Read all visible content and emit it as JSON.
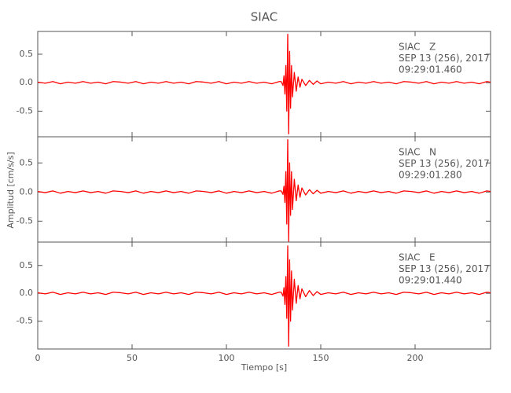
{
  "chart_data": [
    {
      "type": "line",
      "title": "SIAC",
      "color": "#ff0000",
      "annotations": [
        "SIAC   Z",
        "SEP 13 (256), 2017",
        "09:29:01.460"
      ],
      "ylim": [
        -0.95,
        0.9
      ],
      "yticks": [
        -0.5,
        {
          "value": 0,
          "label": "0.0"
        },
        0.5
      ],
      "x": [
        0,
        4,
        8,
        12,
        16,
        20,
        24,
        28,
        32,
        36,
        40,
        44,
        48,
        52,
        56,
        60,
        64,
        68,
        72,
        76,
        80,
        84,
        88,
        92,
        96,
        100,
        104,
        108,
        112,
        116,
        120,
        124,
        128,
        129,
        130,
        130.5,
        131,
        131.5,
        132,
        132.5,
        133,
        133.5,
        134,
        134.5,
        135,
        136,
        137,
        138,
        139,
        140,
        142,
        144,
        146,
        148,
        150,
        154,
        158,
        162,
        166,
        170,
        174,
        178,
        182,
        186,
        190,
        194,
        198,
        202,
        206,
        210,
        214,
        218,
        222,
        226,
        230,
        234,
        238,
        240
      ],
      "values": [
        0.01,
        -0.01,
        0.02,
        -0.02,
        0.01,
        -0.01,
        0.02,
        -0.01,
        0.01,
        -0.02,
        0.02,
        0.01,
        -0.01,
        0.02,
        -0.02,
        0.01,
        -0.01,
        0.02,
        -0.01,
        0.01,
        -0.02,
        0.02,
        0.01,
        -0.01,
        0.02,
        -0.02,
        0.01,
        -0.01,
        0.02,
        -0.01,
        0.01,
        -0.02,
        0.02,
        0.02,
        -0.05,
        0.12,
        -0.2,
        0.3,
        -0.5,
        0.85,
        -0.9,
        0.55,
        -0.45,
        0.3,
        -0.25,
        0.18,
        -0.15,
        0.1,
        -0.08,
        0.06,
        -0.05,
        0.04,
        -0.03,
        0.03,
        -0.02,
        0.01,
        -0.01,
        0.02,
        -0.02,
        0.01,
        -0.01,
        0.02,
        -0.01,
        0.01,
        -0.02,
        0.02,
        0.01,
        -0.01,
        0.02,
        -0.02,
        0.01,
        -0.01,
        0.02,
        -0.01,
        0.01,
        -0.02,
        0.02,
        0.01
      ]
    },
    {
      "type": "line",
      "ylabel": "Amplitud [cm/s/s]",
      "color": "#ff0000",
      "annotations": [
        "SIAC   N",
        "SEP 13 (256), 2017",
        "09:29:01.280"
      ],
      "ylim": [
        -0.86,
        0.95
      ],
      "yticks": [
        -0.5,
        {
          "value": 0,
          "label": "0.0"
        },
        0.5
      ],
      "x": [
        0,
        4,
        8,
        12,
        16,
        20,
        24,
        28,
        32,
        36,
        40,
        44,
        48,
        52,
        56,
        60,
        64,
        68,
        72,
        76,
        80,
        84,
        88,
        92,
        96,
        100,
        104,
        108,
        112,
        116,
        120,
        124,
        128,
        129,
        130,
        130.5,
        131,
        131.5,
        132,
        132.5,
        133,
        133.5,
        134,
        134.5,
        135,
        136,
        137,
        138,
        139,
        140,
        142,
        144,
        146,
        148,
        150,
        154,
        158,
        162,
        166,
        170,
        174,
        178,
        182,
        186,
        190,
        194,
        198,
        202,
        206,
        210,
        214,
        218,
        222,
        226,
        230,
        234,
        238,
        240
      ],
      "values": [
        0.01,
        -0.01,
        0.02,
        -0.02,
        0.01,
        -0.01,
        0.02,
        -0.01,
        0.01,
        -0.02,
        0.02,
        0.01,
        -0.01,
        0.02,
        -0.02,
        0.01,
        -0.01,
        0.02,
        -0.01,
        0.01,
        -0.02,
        0.02,
        0.01,
        -0.01,
        0.02,
        -0.02,
        0.01,
        -0.01,
        0.02,
        -0.01,
        0.01,
        -0.02,
        0.02,
        0.02,
        -0.04,
        0.1,
        -0.18,
        0.35,
        -0.55,
        0.9,
        -0.85,
        0.5,
        -0.4,
        0.35,
        -0.3,
        0.22,
        -0.15,
        0.12,
        -0.09,
        0.07,
        -0.05,
        0.04,
        -0.03,
        0.03,
        -0.02,
        0.01,
        -0.01,
        0.02,
        -0.02,
        0.01,
        -0.01,
        0.02,
        -0.01,
        0.01,
        -0.02,
        0.02,
        0.01,
        -0.01,
        0.02,
        -0.02,
        0.01,
        -0.01,
        0.02,
        -0.01,
        0.01,
        -0.02,
        0.02,
        0.01
      ]
    },
    {
      "type": "line",
      "xlabel": "Tiempo [s]",
      "color": "#ff0000",
      "annotations": [
        "SIAC   E",
        "SEP 13 (256), 2017",
        "09:29:01.440"
      ],
      "ylim": [
        -1.0,
        0.92
      ],
      "yticks": [
        -0.5,
        {
          "value": 0,
          "label": "0.0"
        },
        0.5
      ],
      "xlim": [
        0,
        240
      ],
      "xticks": [
        0,
        50,
        100,
        150,
        200
      ],
      "x": [
        0,
        4,
        8,
        12,
        16,
        20,
        24,
        28,
        32,
        36,
        40,
        44,
        48,
        52,
        56,
        60,
        64,
        68,
        72,
        76,
        80,
        84,
        88,
        92,
        96,
        100,
        104,
        108,
        112,
        116,
        120,
        124,
        128,
        129,
        130,
        130.5,
        131,
        131.5,
        132,
        132.5,
        133,
        133.5,
        134,
        134.5,
        135,
        136,
        137,
        138,
        139,
        140,
        142,
        144,
        146,
        148,
        150,
        154,
        158,
        162,
        166,
        170,
        174,
        178,
        182,
        186,
        190,
        194,
        198,
        202,
        206,
        210,
        214,
        218,
        222,
        226,
        230,
        234,
        238,
        240
      ],
      "values": [
        0.01,
        -0.01,
        0.02,
        -0.02,
        0.01,
        -0.01,
        0.02,
        -0.01,
        0.01,
        -0.02,
        0.02,
        0.01,
        -0.01,
        0.02,
        -0.02,
        0.01,
        -0.01,
        0.02,
        -0.01,
        0.01,
        -0.02,
        0.02,
        0.01,
        -0.01,
        0.02,
        -0.02,
        0.01,
        -0.01,
        0.02,
        -0.01,
        0.01,
        -0.02,
        0.02,
        0.02,
        -0.05,
        0.1,
        -0.2,
        0.3,
        -0.45,
        0.85,
        -0.95,
        0.6,
        -0.5,
        0.4,
        -0.3,
        0.25,
        -0.18,
        0.14,
        -0.1,
        0.08,
        -0.06,
        0.05,
        -0.04,
        0.03,
        -0.02,
        0.01,
        -0.01,
        0.02,
        -0.02,
        0.01,
        -0.01,
        0.02,
        -0.01,
        0.01,
        -0.02,
        0.02,
        0.01,
        -0.01,
        0.02,
        -0.02,
        0.01,
        -0.01,
        0.02,
        -0.01,
        0.01,
        -0.02,
        0.02,
        0.01
      ]
    }
  ]
}
